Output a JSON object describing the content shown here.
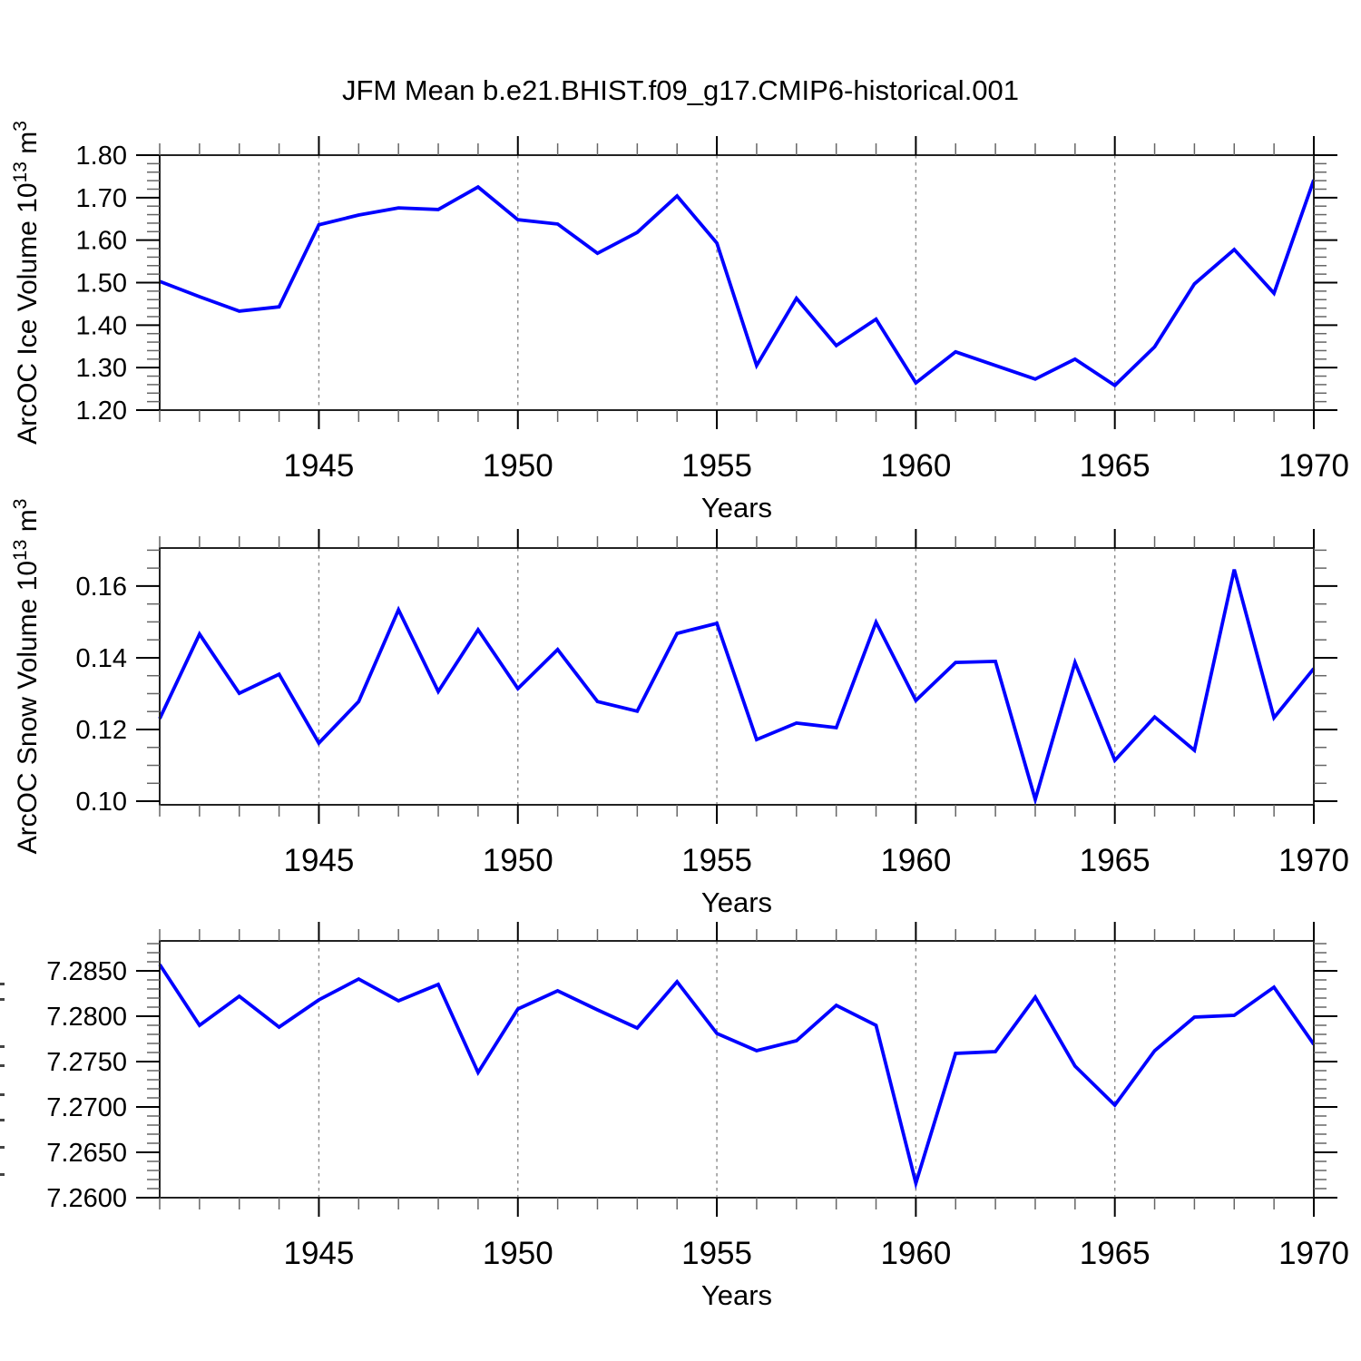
{
  "title": "JFM Mean b.e21.BHIST.f09_g17.CMIP6-historical.001",
  "colors": {
    "line": "#0000ff",
    "frame": "#222222",
    "grid": "#8a8a8a",
    "minor_tick": "#666666",
    "major_tick": "#000000",
    "background": "#ffffff"
  },
  "chart_data": [
    {
      "type": "line",
      "name": "arcoc-ice-volume",
      "ylabel_segments": [
        {
          "t": "ArcOC Ice Volume 10"
        },
        {
          "t": "13",
          "sup": true
        },
        {
          "t": " m"
        },
        {
          "t": "3",
          "sup": true
        }
      ],
      "xlabel": "Years",
      "x": [
        1941,
        1942,
        1943,
        1944,
        1945,
        1946,
        1947,
        1948,
        1949,
        1950,
        1951,
        1952,
        1953,
        1954,
        1955,
        1956,
        1957,
        1958,
        1959,
        1960,
        1961,
        1962,
        1963,
        1964,
        1965,
        1966,
        1967,
        1968,
        1969,
        1970
      ],
      "values": [
        1.503,
        1.467,
        1.433,
        1.443,
        1.636,
        1.659,
        1.676,
        1.672,
        1.725,
        1.648,
        1.638,
        1.569,
        1.618,
        1.704,
        1.593,
        1.305,
        1.463,
        1.352,
        1.414,
        1.264,
        1.337,
        1.305,
        1.273,
        1.32,
        1.258,
        1.349,
        1.497,
        1.578,
        1.475,
        1.742
      ],
      "xlim": [
        1941,
        1970
      ],
      "ylim": [
        1.2,
        1.8
      ],
      "yticks": [
        1.2,
        1.3,
        1.4,
        1.5,
        1.6,
        1.7,
        1.8
      ],
      "ytick_labels": [
        "1.20",
        "1.30",
        "1.40",
        "1.50",
        "1.60",
        "1.70",
        "1.80"
      ],
      "yminor_step": 0.02,
      "xticks_major": [
        1945,
        1950,
        1955,
        1960,
        1965,
        1970
      ],
      "xtick_labels": [
        "1945",
        "1950",
        "1955",
        "1960",
        "1965",
        "1970"
      ],
      "xminor_step": 1,
      "grid": "vertical-dashed",
      "line_color": "#0000ff"
    },
    {
      "type": "line",
      "name": "arcoc-snow-volume",
      "ylabel_segments": [
        {
          "t": "ArcOC Snow Volume 10"
        },
        {
          "t": "13",
          "sup": true
        },
        {
          "t": " m"
        },
        {
          "t": "3",
          "sup": true
        }
      ],
      "xlabel": "Years",
      "x": [
        1941,
        1942,
        1943,
        1944,
        1945,
        1946,
        1947,
        1948,
        1949,
        1950,
        1951,
        1952,
        1953,
        1954,
        1955,
        1956,
        1957,
        1958,
        1959,
        1960,
        1961,
        1962,
        1963,
        1964,
        1965,
        1966,
        1967,
        1968,
        1969,
        1970
      ],
      "values": [
        0.123,
        0.1466,
        0.1301,
        0.1354,
        0.1162,
        0.1278,
        0.1534,
        0.1306,
        0.1478,
        0.1314,
        0.1423,
        0.1278,
        0.1251,
        0.1468,
        0.1496,
        0.1172,
        0.1218,
        0.1205,
        0.1499,
        0.1281,
        0.1387,
        0.139,
        0.1005,
        0.1387,
        0.1114,
        0.1235,
        0.1142,
        0.1646,
        0.1233,
        0.137
      ],
      "xlim": [
        1941,
        1970
      ],
      "ylim": [
        0.099,
        0.1706
      ],
      "yticks": [
        0.1,
        0.12,
        0.14,
        0.16
      ],
      "ytick_labels": [
        "0.10",
        "0.12",
        "0.14",
        "0.16"
      ],
      "yminor_step": 0.005,
      "xticks_major": [
        1945,
        1950,
        1955,
        1960,
        1965,
        1970
      ],
      "xtick_labels": [
        "1945",
        "1950",
        "1955",
        "1960",
        "1965",
        "1970"
      ],
      "xminor_step": 1,
      "grid": "vertical-dashed",
      "line_color": "#0000ff"
    },
    {
      "type": "line",
      "name": "arcoc-third-series",
      "ylabel_segments": [],
      "ylabel_clipped": true,
      "xlabel": "Years",
      "x": [
        1941,
        1942,
        1943,
        1944,
        1945,
        1946,
        1947,
        1948,
        1949,
        1950,
        1951,
        1952,
        1953,
        1954,
        1955,
        1956,
        1957,
        1958,
        1959,
        1960,
        1961,
        1962,
        1963,
        1964,
        1965,
        1966,
        1967,
        1968,
        1969,
        1970
      ],
      "values": [
        7.2857,
        7.279,
        7.2822,
        7.2788,
        7.2818,
        7.2841,
        7.2817,
        7.2835,
        7.2738,
        7.2808,
        7.2828,
        7.2807,
        7.2787,
        7.2838,
        7.2781,
        7.2762,
        7.2773,
        7.2812,
        7.279,
        7.2616,
        7.2759,
        7.2761,
        7.2821,
        7.2745,
        7.2702,
        7.2762,
        7.2799,
        7.2801,
        7.2832,
        7.2769
      ],
      "xlim": [
        1941,
        1970
      ],
      "ylim": [
        7.26,
        7.2883
      ],
      "yticks": [
        7.26,
        7.265,
        7.27,
        7.275,
        7.28,
        7.285
      ],
      "ytick_labels": [
        "7.2600",
        "7.2650",
        "7.2700",
        "7.2750",
        "7.2800",
        "7.2850"
      ],
      "yminor_step": 0.001,
      "xticks_major": [
        1945,
        1950,
        1955,
        1960,
        1965,
        1970
      ],
      "xtick_labels": [
        "1945",
        "1950",
        "1955",
        "1960",
        "1965",
        "1970"
      ],
      "xminor_step": 1,
      "grid": "vertical-dashed",
      "line_color": "#0000ff"
    }
  ]
}
